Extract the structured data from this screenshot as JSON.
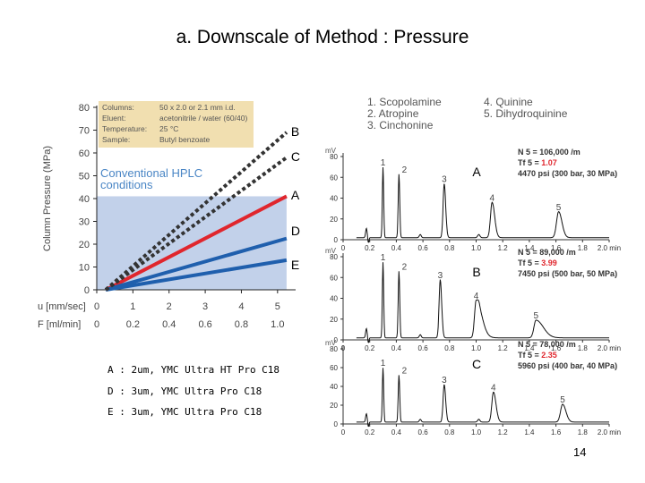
{
  "slide": {
    "title": "a. Downscale of Method : Pressure",
    "page_number": "14",
    "notes": [
      "A : 2um, YMC Ultra HT Pro C18",
      "D : 3um, YMC Ultra Pro C18",
      "E : 3um, YMC Ultra Pro C18"
    ]
  },
  "colors": {
    "region": "#c2d1ea",
    "conditions_box": "#f1dfb0",
    "conventional_text": "#4a86c5",
    "line_A": "#e0262d",
    "line_D": "#1f5fad",
    "line_E": "#1f5fad",
    "line_B": "#333333",
    "line_C": "#333333",
    "tf_red": "#e0262d"
  },
  "chart_data": [
    {
      "type": "line",
      "ylabel": "Column Pressure (MPa)",
      "ylim": [
        0,
        80
      ],
      "yticks": [
        "0",
        "10",
        "20",
        "30",
        "40",
        "50",
        "60",
        "70",
        "80"
      ],
      "xlabel_rows": [
        {
          "label": "u [mm/sec]",
          "ticks": [
            "0",
            "1",
            "2",
            "3",
            "4",
            "5"
          ]
        },
        {
          "label": "F [ml/min]",
          "ticks": [
            "0",
            "0.2",
            "0.4",
            "0.6",
            "0.8",
            "1.0"
          ]
        }
      ],
      "xlim": [
        0,
        5.5
      ],
      "region": {
        "label": "Conventional HPLC conditions",
        "label_lines": [
          "Conventional HPLC",
          "conditions"
        ],
        "ymax": 41
      },
      "conditions": [
        {
          "key": "Columns:",
          "value": "50 x 2.0 or 2.1 mm i.d."
        },
        {
          "key": "Eluent:",
          "value": "acetonitrile / water (60/40)"
        },
        {
          "key": "Temperature:",
          "value": "25 °C"
        },
        {
          "key": "Sample:",
          "value": "Butyl benzoate"
        }
      ],
      "series": [
        {
          "name": "A",
          "style": "solid",
          "x": [
            0.25,
            5.25
          ],
          "y": [
            0,
            41
          ]
        },
        {
          "name": "D",
          "style": "solid",
          "x": [
            0.25,
            5.25
          ],
          "y": [
            0,
            22.5
          ]
        },
        {
          "name": "E",
          "style": "solid",
          "x": [
            0.25,
            5.25
          ],
          "y": [
            0,
            13
          ]
        },
        {
          "name": "B",
          "style": "dashed",
          "x": [
            0.25,
            5.25
          ],
          "y": [
            0,
            69
          ]
        },
        {
          "name": "C",
          "style": "dashed",
          "x": [
            0.25,
            5.25
          ],
          "y": [
            0,
            58
          ]
        }
      ],
      "annotations": [
        {
          "text": "B",
          "x": 5.3,
          "y": 69
        },
        {
          "text": "C",
          "x": 5.3,
          "y": 58
        },
        {
          "text": "A",
          "x": 5.3,
          "y": 41
        },
        {
          "text": "D",
          "x": 5.3,
          "y": 25.5
        },
        {
          "text": "E",
          "x": 5.3,
          "y": 10.5
        }
      ]
    },
    {
      "type": "line",
      "legend": [
        "1. Scopolamine",
        "2. Atropine",
        "3. Cinchonine",
        "4. Quinine",
        "5. Dihydroquinine"
      ],
      "xlim": [
        0,
        2.0
      ],
      "xticks": [
        "0",
        "0.2",
        "0.4",
        "0.6",
        "0.8",
        "1.0",
        "1.2",
        "1.4",
        "1.6",
        "1.8",
        "2.0 min"
      ],
      "ylim": [
        0,
        80
      ],
      "yticks": [
        "0",
        "20",
        "40",
        "60",
        "80"
      ],
      "ylabel": "mV",
      "panels": [
        {
          "label": "A",
          "info": [
            "N 5 = 106,000 /m",
            "Tf 5 = ",
            "1.07",
            "4470 psi (300 bar, 30 MPa)"
          ],
          "peaks": [
            {
              "label": "1",
              "t": 0.3,
              "h": 68
            },
            {
              "label": "2",
              "t": 0.42,
              "h": 61
            },
            {
              "label": "3",
              "t": 0.76,
              "h": 52
            },
            {
              "label": "4",
              "t": 1.12,
              "h": 34
            },
            {
              "label": "5",
              "t": 1.62,
              "h": 25
            }
          ]
        },
        {
          "label": "B",
          "info": [
            "N 5 = 89,000 /m",
            "Tf 5 = ",
            "3.99",
            "7450 psi (500 bar, 50 MPa)"
          ],
          "peaks": [
            {
              "label": "1",
              "t": 0.3,
              "h": 73
            },
            {
              "label": "2",
              "t": 0.42,
              "h": 64
            },
            {
              "label": "3",
              "t": 0.73,
              "h": 56
            },
            {
              "label": "4",
              "t": 1.0,
              "h": 36
            },
            {
              "label": "5",
              "t": 1.45,
              "h": 17
            }
          ]
        },
        {
          "label": "C",
          "info": [
            "N 5 = 78,000 /m",
            "Tf 5 = ",
            "2.35",
            "5960 psi (400 bar, 40 MPa)"
          ],
          "peaks": [
            {
              "label": "1",
              "t": 0.3,
              "h": 58
            },
            {
              "label": "2",
              "t": 0.42,
              "h": 50
            },
            {
              "label": "3",
              "t": 0.76,
              "h": 40
            },
            {
              "label": "4",
              "t": 1.13,
              "h": 32
            },
            {
              "label": "5",
              "t": 1.65,
              "h": 19
            }
          ]
        }
      ]
    }
  ]
}
